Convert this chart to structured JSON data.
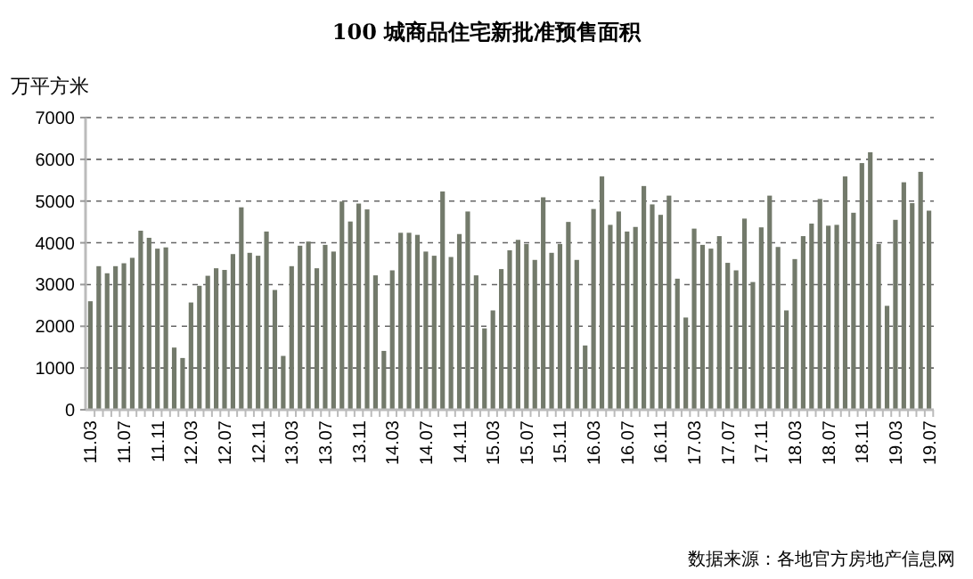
{
  "chart_data": {
    "type": "bar",
    "title": "100 城商品住宅新批准预售面积",
    "ylabel": "万平方米",
    "annotations": [
      "数据来源：各地官方房地产信息网"
    ],
    "categories": [
      "11.03",
      null,
      null,
      null,
      "11.07",
      null,
      null,
      null,
      "11.11",
      null,
      null,
      null,
      "12.03",
      null,
      null,
      null,
      "12.07",
      null,
      null,
      null,
      "12.11",
      null,
      null,
      null,
      "13.03",
      null,
      null,
      null,
      "13.07",
      null,
      null,
      null,
      "13.11",
      null,
      null,
      null,
      "14.03",
      null,
      null,
      null,
      "14.07",
      null,
      null,
      null,
      "14.11",
      null,
      null,
      null,
      "15.03",
      null,
      null,
      null,
      "15.07",
      null,
      null,
      null,
      "15.11",
      null,
      null,
      null,
      "16.03",
      null,
      null,
      null,
      "16.07",
      null,
      null,
      null,
      "16.11",
      null,
      null,
      null,
      "17.03",
      null,
      null,
      null,
      "17.07",
      null,
      null,
      null,
      "17.11",
      null,
      null,
      null,
      "18.03",
      null,
      null,
      null,
      "18.07",
      null,
      null,
      null,
      "18.11",
      null,
      null,
      null,
      "19.03",
      null,
      null,
      null,
      "19.07"
    ],
    "values": [
      2600,
      3440,
      3270,
      3440,
      3510,
      3640,
      4290,
      4120,
      3860,
      3890,
      1490,
      1240,
      2570,
      2970,
      3210,
      3390,
      3350,
      3730,
      4850,
      3760,
      3690,
      4270,
      2870,
      1290,
      3440,
      3930,
      4030,
      3390,
      3950,
      3790,
      4990,
      4510,
      4940,
      4800,
      3220,
      1410,
      3340,
      4240,
      4240,
      4190,
      3790,
      3690,
      5230,
      3660,
      4210,
      4750,
      3220,
      1950,
      2380,
      3370,
      3820,
      4070,
      3970,
      3590,
      5090,
      3760,
      3970,
      4500,
      3590,
      1540,
      4810,
      5590,
      4430,
      4750,
      4270,
      4380,
      5360,
      4920,
      4670,
      5130,
      3140,
      2210,
      4340,
      3950,
      3860,
      4160,
      3520,
      3340,
      4580,
      3060,
      4370,
      5130,
      3900,
      2380,
      3610,
      4160,
      4460,
      5050,
      4410,
      4430,
      5590,
      4720,
      5910,
      6170,
      3970,
      2490,
      4550,
      5450,
      4950,
      5700,
      4770
    ],
    "color": "#737a6b",
    "ylim": [
      0,
      7000
    ],
    "yticks": [
      0,
      1000,
      2000,
      3000,
      4000,
      5000,
      6000,
      7000
    ],
    "grid": "y"
  }
}
